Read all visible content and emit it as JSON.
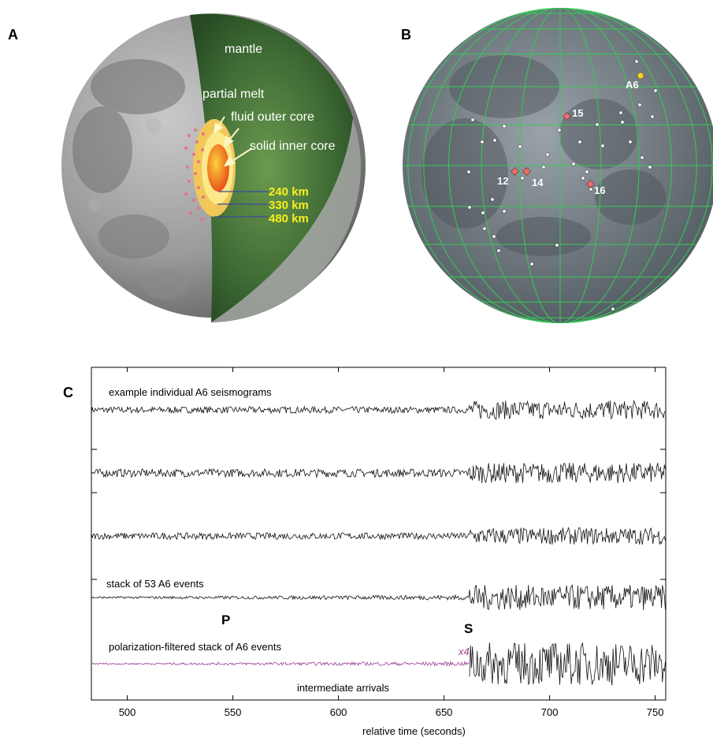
{
  "figure": {
    "panel_a": {
      "letter": "A",
      "labels": {
        "mantle": "mantle",
        "partial_melt": "partial melt",
        "fluid_outer_core": "fluid outer core",
        "solid_inner_core": "solid inner core",
        "r240": "240 km",
        "r330": "330 km",
        "r480": "480 km"
      },
      "colors": {
        "mantle": "#2f5a2a",
        "partial_melt": "#f2c75a",
        "outer_core": "#fbe98a",
        "inner_core": "#f26a1b",
        "radius_text": "#f7ef1e",
        "moon_surface": "#9a9a9a"
      }
    },
    "panel_b": {
      "letter": "B",
      "station_labels": [
        "12",
        "14",
        "15",
        "16"
      ],
      "source_label": "A6",
      "colors": {
        "grid": "#33cc55",
        "station": "#e8706a",
        "source": "#f5d21e",
        "event": "#ffffff"
      }
    },
    "panel_c": {
      "letter": "C",
      "trace_labels": {
        "individual": "example individual A6 seismograms",
        "stack": "stack of 53 A6 events",
        "polarization": "polarization-filtered stack of A6 events"
      },
      "phase_labels": {
        "p": "P",
        "s": "S"
      },
      "scale_label": "x4",
      "arrivals_label": "intermediate arrivals",
      "colors": {
        "trace": "#111111",
        "filtered": "#9b3c95"
      }
    },
    "chart_data": {
      "type": "line",
      "title": "",
      "xlabel": "relative time (seconds)",
      "ylabel": "",
      "xlim": [
        483,
        755
      ],
      "x_ticks": [
        500,
        550,
        600,
        650,
        700,
        750
      ],
      "grid": false,
      "series": [
        {
          "kind": "noisy-then-large",
          "amplitude_before_s": 0.35,
          "amplitude_after_s": 1.0
        },
        {
          "kind": "noisy-then-large",
          "amplitude_before_s": 0.4,
          "amplitude_after_s": 1.0
        },
        {
          "kind": "noisy-then-large",
          "amplitude_before_s": 0.35,
          "amplitude_after_s": 0.9
        },
        {
          "name": "stack of 53 A6 events",
          "amplitude_before_s": 0.2,
          "amplitude_after_s": 1.6
        },
        {
          "name": "polarization-filtered stack of A6 events",
          "amplitude_before_s": 0.15,
          "amplitude_after_s": 2.5
        }
      ],
      "annotations": [
        {
          "text": "P",
          "x": 545
        },
        {
          "text": "S",
          "x": 662
        }
      ]
    }
  }
}
